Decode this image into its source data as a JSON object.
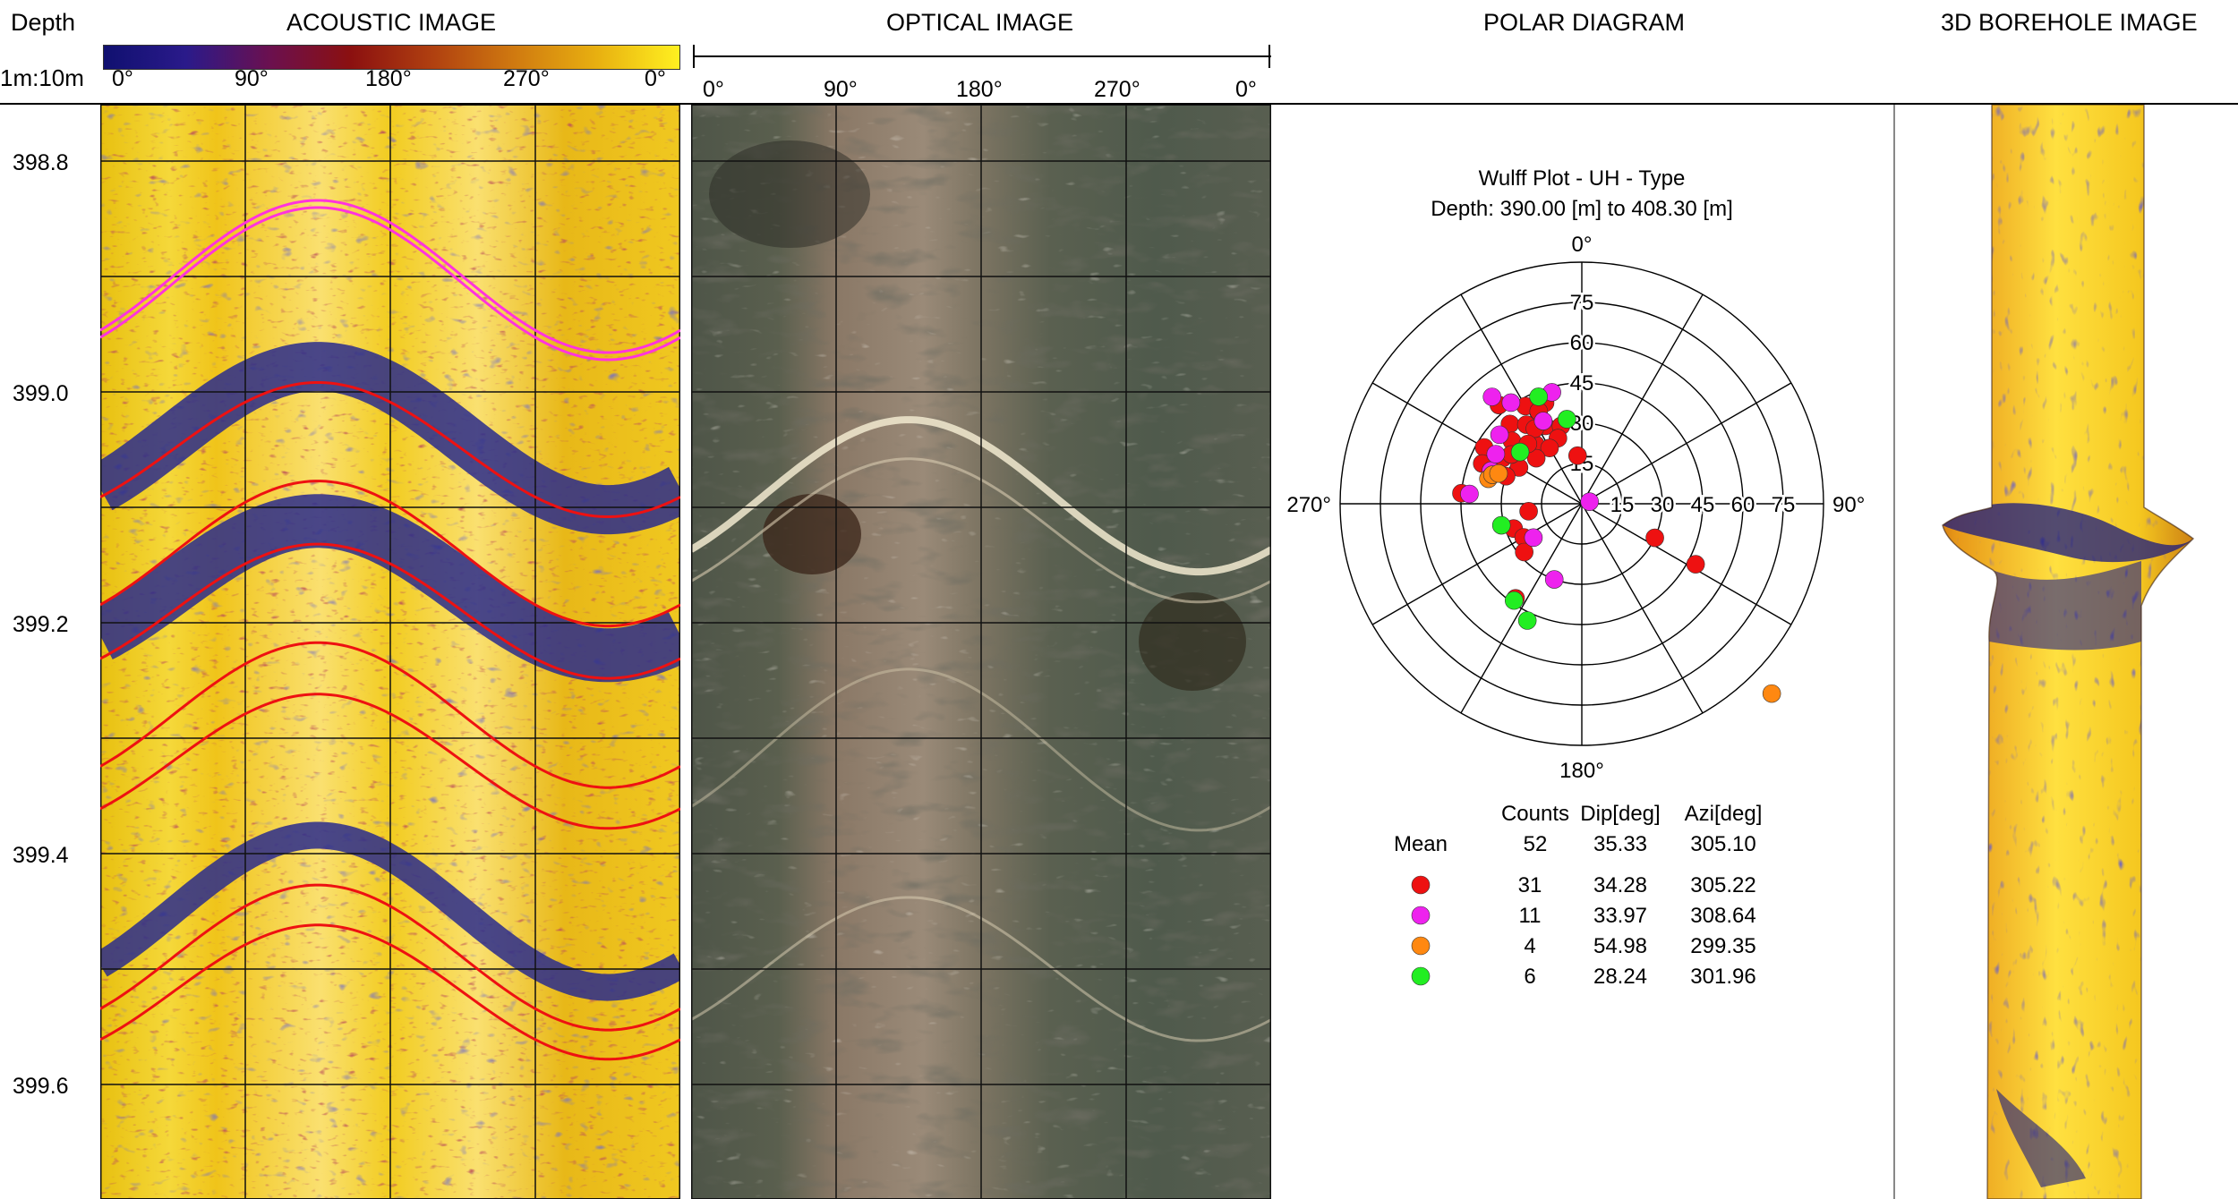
{
  "track_headers": {
    "depth": "Depth",
    "scale": "1m:10m",
    "acoustic": "ACOUSTIC IMAGE",
    "optical": "OPTICAL IMAGE",
    "polar": "POLAR DIAGRAM",
    "borehole3d": "3D BOREHOLE IMAGE"
  },
  "colors": {
    "acoustic_bg": "#f2d21a",
    "acoustic_dark": "#2a2c8c",
    "acoustic_maroon": "#7a1a1a",
    "optical_bg": "#5a6152",
    "optical_band": "#8f7f6e",
    "magenta": "#ff33dd",
    "red": "#ee1111",
    "green": "#22ee22",
    "orange": "#ff8811"
  },
  "acoustic_scale": {
    "ticks": [
      "0°",
      "90°",
      "180°",
      "270°",
      "0°"
    ],
    "gradient": [
      "#101070",
      "#2a1a8a",
      "#6a1050",
      "#8b1010",
      "#b04010",
      "#d07a10",
      "#e8b010",
      "#fff020"
    ]
  },
  "optical_scale": {
    "ticks": [
      "0°",
      "90°",
      "180°",
      "270°",
      "0°"
    ]
  },
  "depth_axis": {
    "labels": [
      "398.8",
      "399.0",
      "399.2",
      "399.4",
      "399.6"
    ],
    "values": [
      398.8,
      399.0,
      399.2,
      399.4,
      399.6
    ]
  },
  "chart_data": {
    "type": "scatter",
    "title": "Wulff Plot - UH - Type",
    "subtitle": "Depth: 390.00 [m] to 408.30 [m]",
    "azimuth_labels": [
      "0°",
      "90°",
      "180°",
      "270°"
    ],
    "dip_ticks": [
      "15",
      "30",
      "45",
      "60",
      "75"
    ],
    "dip_rings": [
      15,
      30,
      45,
      60,
      75,
      90
    ],
    "series": [
      {
        "color": "#ee1111",
        "points": [
          {
            "azi": 320,
            "dip": 48
          },
          {
            "azi": 330,
            "dip": 42
          },
          {
            "azi": 340,
            "dip": 40
          },
          {
            "azi": 318,
            "dip": 40
          },
          {
            "azi": 325,
            "dip": 36
          },
          {
            "azi": 312,
            "dip": 35
          },
          {
            "azi": 300,
            "dip": 34
          },
          {
            "azi": 335,
            "dip": 32
          },
          {
            "azi": 345,
            "dip": 30
          },
          {
            "azi": 310,
            "dip": 30
          },
          {
            "azi": 322,
            "dip": 28
          },
          {
            "azi": 340,
            "dip": 26
          },
          {
            "azi": 330,
            "dip": 24
          },
          {
            "azi": 315,
            "dip": 24
          },
          {
            "azi": 300,
            "dip": 27
          },
          {
            "azi": 335,
            "dip": 38
          },
          {
            "azi": 355,
            "dip": 18
          },
          {
            "azi": 328,
            "dip": 33
          },
          {
            "azi": 305,
            "dip": 32
          },
          {
            "azi": 318,
            "dip": 30
          },
          {
            "azi": 300,
            "dip": 42
          },
          {
            "azi": 292,
            "dip": 40
          },
          {
            "azi": 275,
            "dip": 45
          },
          {
            "azi": 290,
            "dip": 30
          },
          {
            "azi": 262,
            "dip": 20
          },
          {
            "azi": 250,
            "dip": 27
          },
          {
            "azi": 240,
            "dip": 25
          },
          {
            "azi": 230,
            "dip": 28
          },
          {
            "azi": 215,
            "dip": 43
          },
          {
            "azi": 115,
            "dip": 30
          },
          {
            "azi": 118,
            "dip": 48
          }
        ]
      },
      {
        "color": "#ee22ee",
        "points": [
          {
            "azi": 345,
            "dip": 43
          },
          {
            "azi": 320,
            "dip": 52
          },
          {
            "azi": 325,
            "dip": 46
          },
          {
            "azi": 335,
            "dip": 34
          },
          {
            "azi": 290,
            "dip": 36
          },
          {
            "azi": 275,
            "dip": 42
          },
          {
            "azi": 300,
            "dip": 37
          },
          {
            "azi": 310,
            "dip": 40
          },
          {
            "azi": 75,
            "dip": 3
          },
          {
            "azi": 235,
            "dip": 22
          },
          {
            "azi": 200,
            "dip": 30
          }
        ]
      },
      {
        "color": "#ff8811",
        "points": [
          {
            "azi": 285,
            "dip": 36
          },
          {
            "azi": 288,
            "dip": 35
          },
          {
            "azi": 290,
            "dip": 33
          },
          {
            "azi": 135,
            "dip": 100
          }
        ]
      },
      {
        "color": "#22ee22",
        "points": [
          {
            "azi": 338,
            "dip": 43
          },
          {
            "azi": 350,
            "dip": 32
          },
          {
            "azi": 255,
            "dip": 31
          },
          {
            "azi": 215,
            "dip": 44
          },
          {
            "azi": 205,
            "dip": 48
          },
          {
            "azi": 310,
            "dip": 30
          }
        ]
      }
    ],
    "stats": {
      "headers": [
        "Counts",
        "Dip[deg]",
        "Azi[deg]"
      ],
      "mean_label": "Mean",
      "mean": [
        "52",
        "35.33",
        "305.10"
      ],
      "rows": [
        {
          "color": "#ee1111",
          "values": [
            "31",
            "34.28",
            "305.22"
          ]
        },
        {
          "color": "#ee22ee",
          "values": [
            "11",
            "33.97",
            "308.64"
          ]
        },
        {
          "color": "#ff8811",
          "values": [
            "4",
            "54.98",
            "299.35"
          ]
        },
        {
          "color": "#22ee22",
          "values": [
            "6",
            "28.24",
            "301.96"
          ]
        }
      ]
    }
  }
}
